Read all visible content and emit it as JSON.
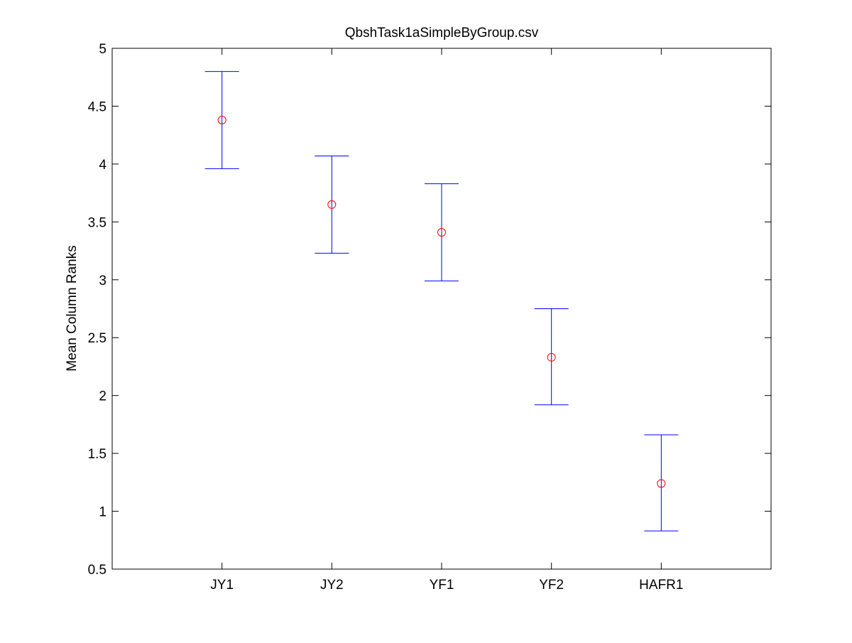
{
  "chart_data": {
    "type": "scatter",
    "title": "QbshTask1aSimpleByGroup.csv",
    "xlabel": "",
    "ylabel": "Mean Column Ranks",
    "categories": [
      "JY1",
      "JY2",
      "YF1",
      "YF2",
      "HAFR1"
    ],
    "series": [
      {
        "marker": "circle",
        "values": [
          4.38,
          3.65,
          3.41,
          2.33,
          1.24
        ],
        "lower": [
          3.96,
          3.23,
          2.99,
          1.92,
          0.83
        ],
        "upper": [
          4.8,
          4.07,
          3.83,
          2.75,
          1.66
        ]
      }
    ],
    "ylim": [
      0.5,
      5
    ],
    "yticks": [
      0.5,
      1,
      1.5,
      2,
      2.5,
      3,
      3.5,
      4,
      4.5,
      5
    ],
    "grid": false,
    "colors": {
      "marker": "#ff0000",
      "errorbar": "#0000ff",
      "axes": "#000000"
    }
  }
}
